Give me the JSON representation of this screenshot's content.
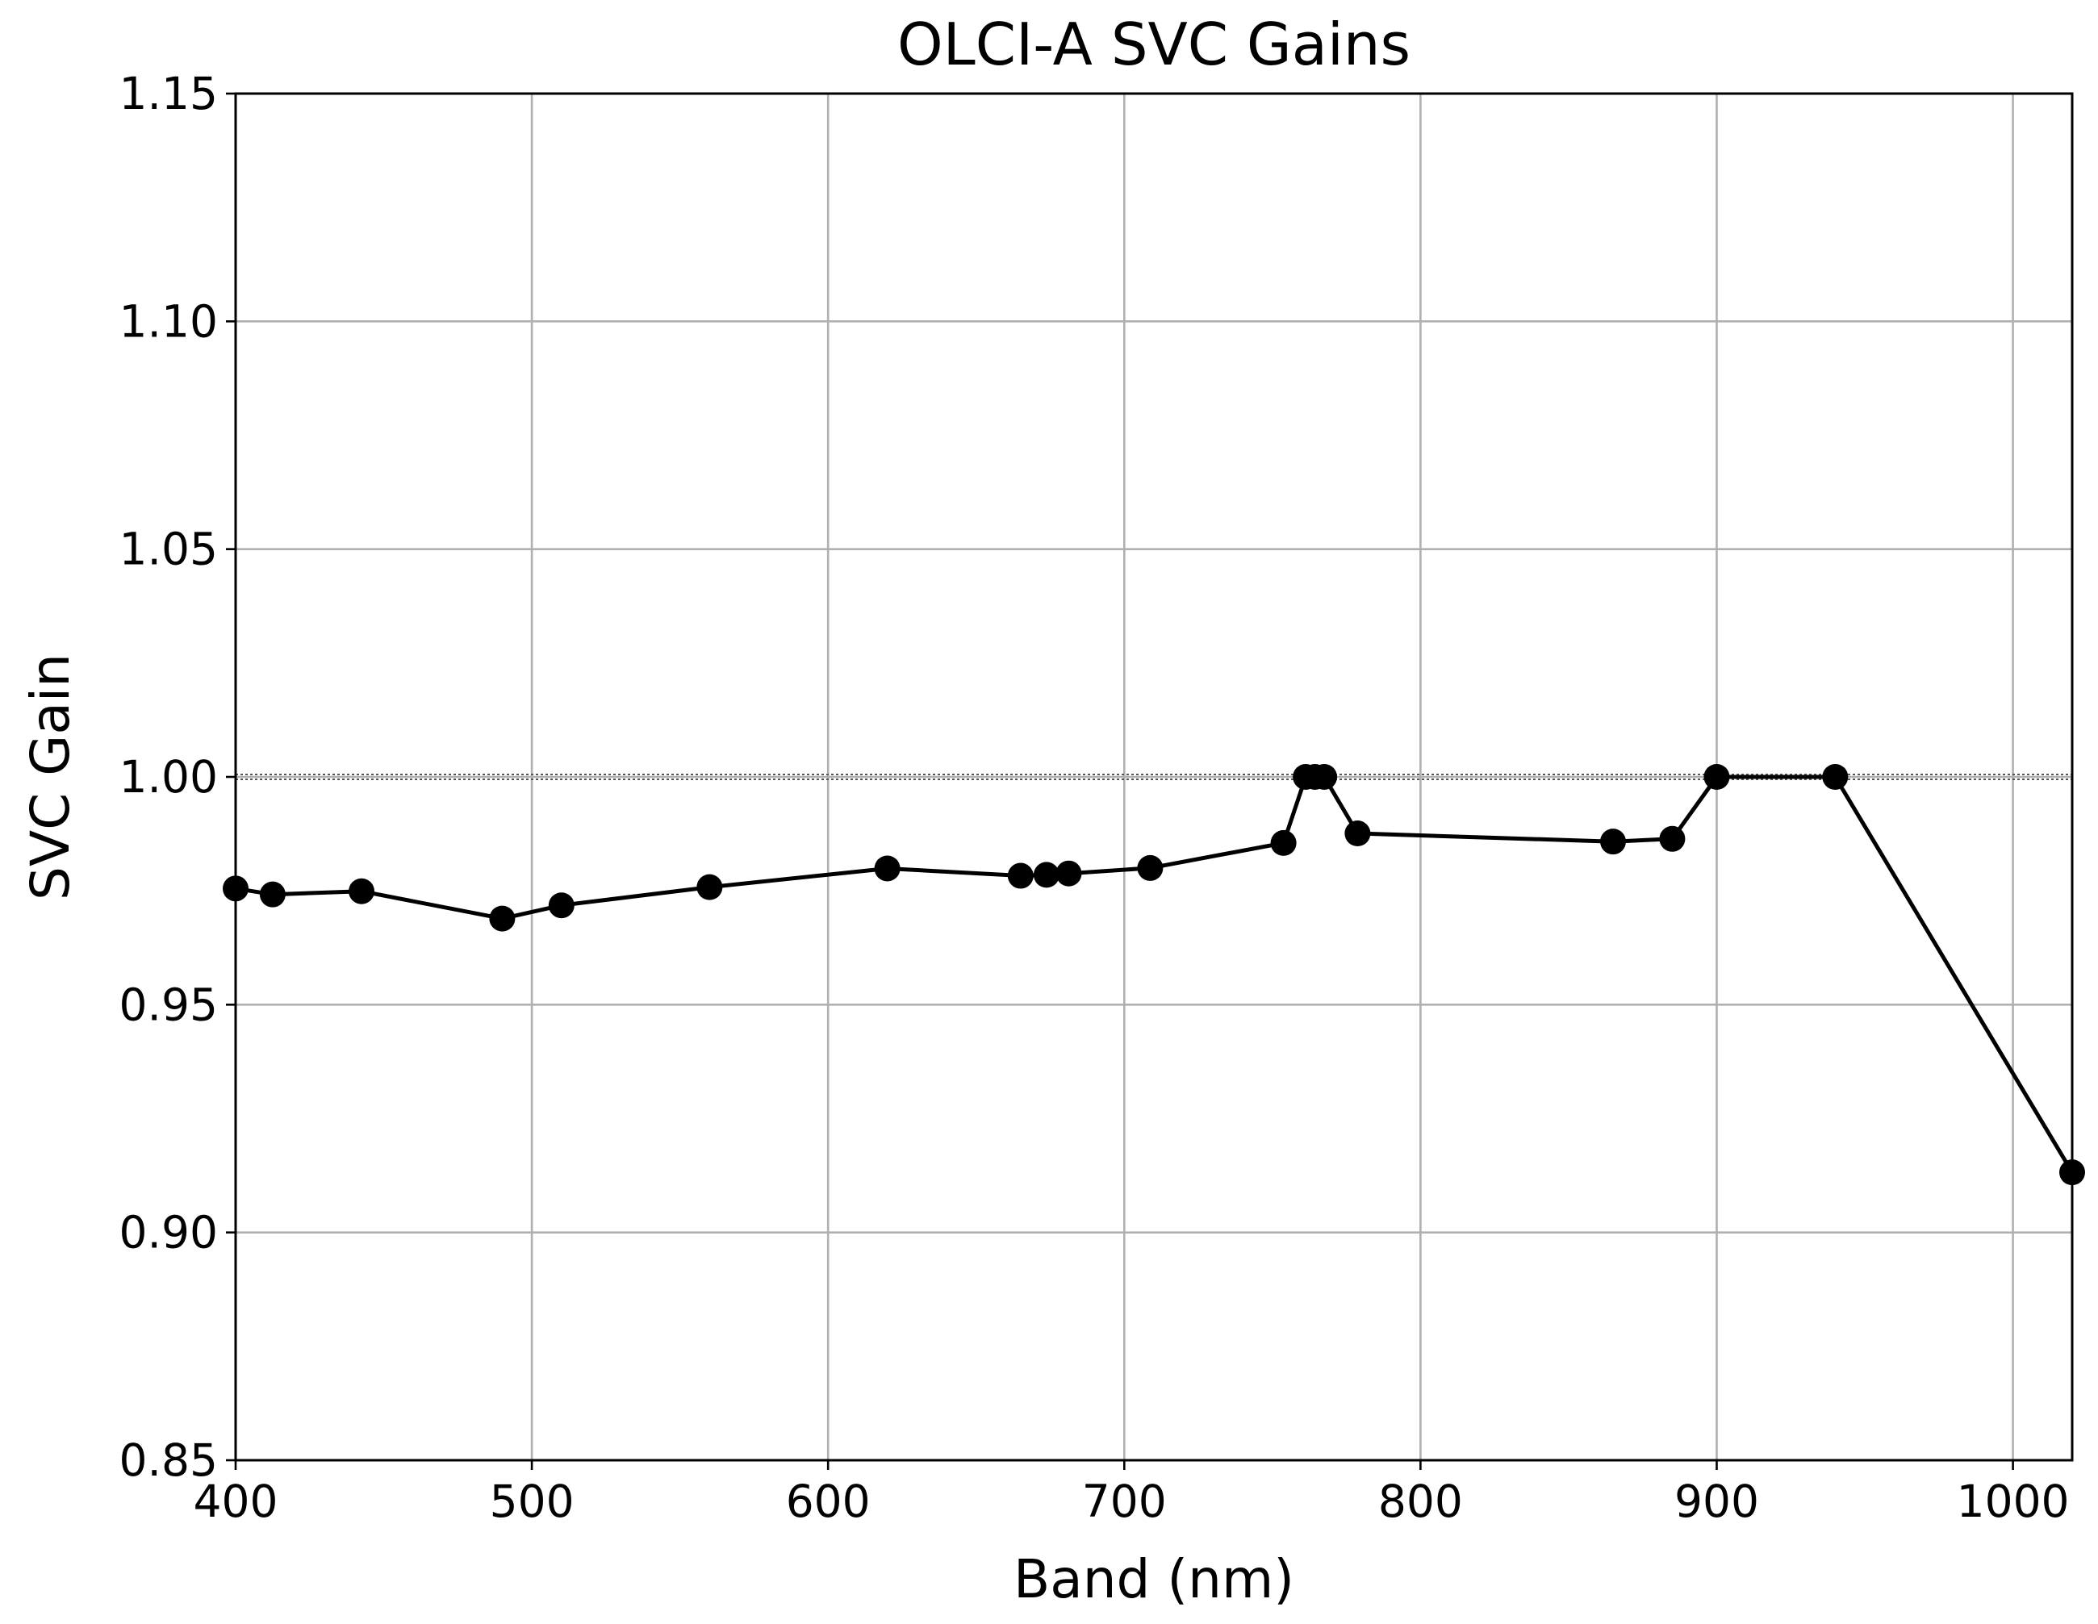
{
  "chart_data": {
    "type": "line",
    "title": "OLCI-A SVC Gains",
    "xlabel": "Band (nm)",
    "ylabel": "SVC Gain",
    "xlim": [
      400,
      1020
    ],
    "ylim": [
      0.85,
      1.15
    ],
    "grid": true,
    "reference_line": 1.0,
    "x_ticks": [
      400,
      500,
      600,
      700,
      800,
      900,
      1000
    ],
    "y_ticks": [
      0.85,
      0.9,
      0.95,
      1.0,
      1.05,
      1.1,
      1.15
    ],
    "x_tick_labels": [
      "400",
      "500",
      "600",
      "700",
      "800",
      "900",
      "1000"
    ],
    "y_tick_labels": [
      "0.85",
      "0.90",
      "0.95",
      "1.00",
      "1.05",
      "1.10",
      "1.15"
    ],
    "series": [
      {
        "name": "OLCI-A SVC Gains",
        "color": "#000000",
        "x": [
          400,
          412.5,
          442.5,
          490,
          510,
          560,
          620,
          665,
          673.75,
          681.25,
          708.75,
          753.75,
          761.25,
          764.375,
          767.5,
          778.75,
          865,
          885,
          900,
          940,
          1020
        ],
        "y": [
          0.9755,
          0.9742,
          0.9749,
          0.9689,
          0.9718,
          0.9758,
          0.9799,
          0.9783,
          0.9785,
          0.9788,
          0.98,
          0.9855,
          1.0,
          1.0,
          1.0,
          0.9876,
          0.9858,
          0.9864,
          1.0,
          1.0,
          0.9132
        ]
      }
    ]
  }
}
